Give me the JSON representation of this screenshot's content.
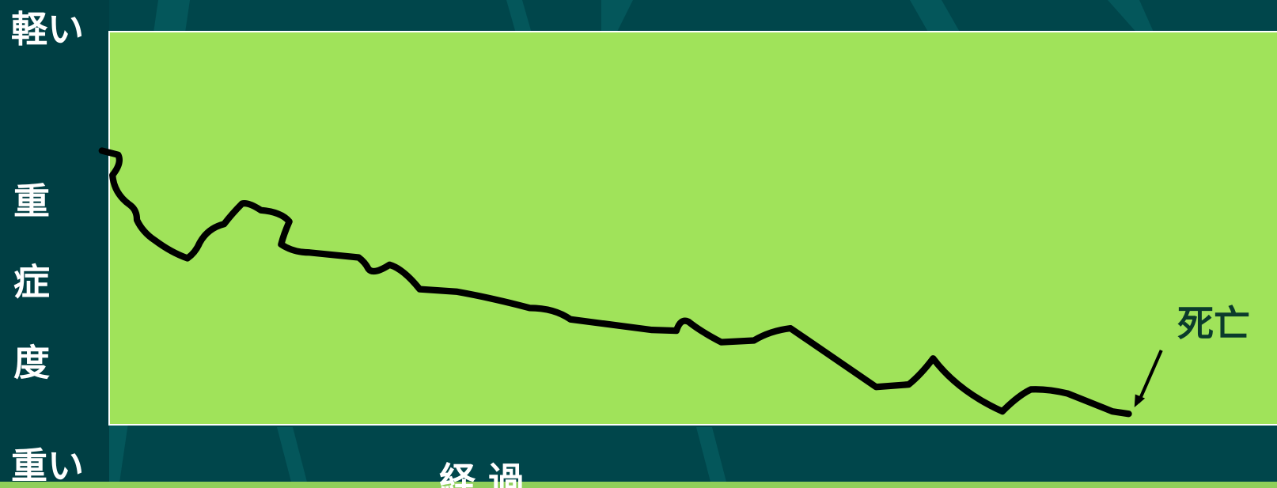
{
  "labels": {
    "top": "軽い",
    "bottom": "重い",
    "y_axis": "重症度",
    "x_axis": "経 過",
    "annotation": "死亡"
  }
}
